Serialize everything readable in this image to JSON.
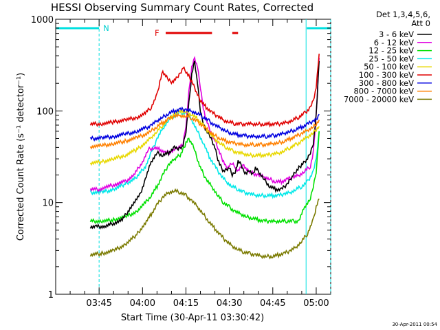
{
  "chart_data": {
    "type": "line",
    "title": "HESSI Observing Summary Count Rates, Corrected",
    "xlabel": "Start Time (30-Apr-11 03:30:42)",
    "ylabel": "Corrected Count Rate (s⁻¹ detector⁻¹)",
    "y_scale": "log",
    "ylim": [
      1,
      1000
    ],
    "xlim_minutes_after_0330": [
      0,
      95
    ],
    "x_ticks": [
      "03:45",
      "04:00",
      "04:15",
      "04:30",
      "04:45",
      "05:00"
    ],
    "x_tick_minutes": [
      15,
      30,
      45,
      60,
      75,
      90
    ],
    "y_ticks": [
      "1",
      "10",
      "100",
      "1000"
    ],
    "legend_header": [
      "Det 1,3,4,5,6,",
      "Att 0"
    ],
    "flag_labels": {
      "night": "N",
      "flare": "F"
    },
    "timestamp": "30-Apr-2011 00:54",
    "night_segments_minutes": [
      [
        0,
        15
      ],
      [
        86.5,
        95
      ]
    ],
    "flare_segments_minutes": [
      [
        38,
        54
      ],
      [
        61,
        63
      ]
    ],
    "series": [
      {
        "name": "3 - 6 keV",
        "color": "#000000",
        "x": [
          12,
          14,
          17,
          20,
          23,
          26,
          29,
          31,
          33,
          35,
          37,
          39,
          41,
          42,
          43,
          44,
          45,
          46,
          47,
          48,
          49,
          50,
          51,
          52,
          53,
          54,
          55,
          56,
          57,
          58,
          59,
          60,
          61,
          62,
          63,
          64,
          65,
          66,
          67,
          68,
          69,
          70,
          72,
          74,
          76,
          78,
          80,
          81,
          82,
          83,
          84,
          85,
          86,
          87,
          88,
          89,
          90,
          91
        ],
        "y": [
          5.5,
          5.5,
          5.5,
          6,
          6.5,
          9,
          12,
          18,
          28,
          35,
          33,
          35,
          40,
          38,
          40,
          42,
          60,
          120,
          250,
          350,
          200,
          100,
          75,
          60,
          55,
          48,
          40,
          30,
          25,
          22,
          23,
          24,
          20,
          22,
          28,
          26,
          22,
          21,
          23,
          20,
          24,
          22,
          18,
          15,
          14,
          14,
          16,
          18,
          20,
          22,
          24,
          26,
          28,
          30,
          35,
          45,
          90,
          350
        ]
      },
      {
        "name": "6 - 12 keV",
        "color": "#e000e0",
        "x": [
          12,
          15,
          18,
          21,
          24,
          27,
          30,
          32,
          34,
          36,
          38,
          40,
          42,
          44,
          45,
          46,
          47,
          48,
          49,
          50,
          51,
          52,
          53,
          54,
          55,
          56,
          57,
          58,
          59,
          60,
          61,
          62,
          63,
          64,
          65,
          66,
          67,
          68,
          70,
          72,
          74,
          76,
          78,
          80,
          82,
          84,
          86,
          88,
          89,
          90,
          91
        ],
        "y": [
          14,
          14,
          15,
          16,
          17,
          20,
          28,
          38,
          40,
          38,
          35,
          36,
          40,
          44,
          70,
          160,
          300,
          380,
          300,
          180,
          110,
          80,
          65,
          55,
          48,
          40,
          33,
          28,
          24,
          25,
          27,
          25,
          22,
          24,
          26,
          23,
          22,
          21,
          20,
          19,
          18,
          17,
          17,
          18,
          19,
          20,
          22,
          25,
          35,
          90,
          380
        ]
      },
      {
        "name": "12 - 25 keV",
        "color": "#00e000",
        "x": [
          12,
          16,
          20,
          24,
          28,
          31,
          33,
          35,
          37,
          39,
          41,
          42,
          43,
          44,
          45,
          46,
          47,
          48,
          49,
          50,
          52,
          54,
          56,
          58,
          60,
          62,
          64,
          66,
          68,
          70,
          72,
          74,
          76,
          78,
          80,
          82,
          84,
          86,
          88,
          89,
          90,
          91
        ],
        "y": [
          6.3,
          6.3,
          6.5,
          7,
          8,
          10,
          12,
          15,
          20,
          26,
          30,
          32,
          33,
          38,
          45,
          50,
          44,
          38,
          30,
          24,
          18,
          15,
          12,
          10,
          9,
          8,
          7.5,
          7,
          6.8,
          6.5,
          6.3,
          6.3,
          6.3,
          6.3,
          6.3,
          6.3,
          6.3,
          9,
          11,
          15,
          22,
          60
        ]
      },
      {
        "name": "25 - 50 keV",
        "color": "#00e8e8",
        "x": [
          12,
          16,
          20,
          24,
          28,
          31,
          33,
          35,
          37,
          39,
          41,
          43,
          45,
          47,
          49,
          51,
          53,
          55,
          57,
          59,
          61,
          63,
          65,
          67,
          69,
          71,
          73,
          75,
          77,
          79,
          81,
          83,
          85,
          87,
          89,
          90,
          91
        ],
        "y": [
          13,
          13,
          14,
          16,
          19,
          25,
          35,
          50,
          65,
          80,
          90,
          95,
          95,
          80,
          60,
          45,
          32,
          25,
          20,
          17,
          15,
          14,
          13,
          12.5,
          12,
          12,
          12,
          12,
          12,
          12.5,
          13,
          14,
          15,
          17,
          22,
          30,
          60
        ]
      },
      {
        "name": "50 - 100 keV",
        "color": "#e8d800",
        "x": [
          12,
          16,
          20,
          24,
          28,
          31,
          33,
          35,
          37,
          39,
          41,
          43,
          45,
          47,
          49,
          51,
          53,
          55,
          57,
          59,
          61,
          63,
          65,
          67,
          69,
          71,
          73,
          75,
          77,
          79,
          81,
          83,
          85,
          87,
          89,
          90,
          91
        ],
        "y": [
          27,
          28,
          30,
          33,
          38,
          45,
          52,
          60,
          70,
          82,
          92,
          100,
          98,
          92,
          82,
          70,
          58,
          50,
          44,
          40,
          37,
          35,
          34,
          33,
          33,
          33,
          33,
          34,
          35,
          37,
          40,
          43,
          47,
          52,
          58,
          62,
          68
        ]
      },
      {
        "name": "100 - 300 keV",
        "color": "#e00000",
        "x": [
          12,
          16,
          20,
          24,
          28,
          31,
          33,
          35,
          36,
          37,
          38,
          39,
          40,
          41,
          42,
          43,
          44,
          45,
          46,
          47,
          48,
          49,
          50,
          52,
          54,
          56,
          58,
          60,
          62,
          64,
          66,
          68,
          70,
          72,
          74,
          76,
          78,
          80,
          82,
          84,
          86,
          88,
          89,
          90,
          91
        ],
        "y": [
          72,
          73,
          76,
          80,
          85,
          95,
          110,
          150,
          210,
          270,
          240,
          220,
          210,
          215,
          230,
          260,
          300,
          270,
          240,
          210,
          180,
          150,
          130,
          110,
          96,
          88,
          80,
          76,
          73,
          72,
          72,
          72,
          72,
          72,
          72,
          72,
          73,
          76,
          80,
          86,
          95,
          110,
          130,
          180,
          420
        ]
      },
      {
        "name": "300 - 800 keV",
        "color": "#0000e0",
        "x": [
          12,
          16,
          20,
          24,
          28,
          31,
          33,
          35,
          37,
          39,
          41,
          43,
          45,
          47,
          49,
          51,
          53,
          55,
          57,
          59,
          61,
          63,
          65,
          67,
          69,
          71,
          73,
          75,
          77,
          79,
          81,
          83,
          85,
          87,
          89,
          90,
          91
        ],
        "y": [
          50,
          51,
          53,
          56,
          60,
          65,
          70,
          78,
          86,
          94,
          100,
          104,
          104,
          100,
          94,
          86,
          78,
          70,
          65,
          60,
          57,
          55,
          54,
          53,
          53,
          53,
          53,
          54,
          55,
          57,
          60,
          63,
          67,
          72,
          78,
          82,
          92
        ]
      },
      {
        "name": "800 - 7000 keV",
        "color": "#ff8000",
        "x": [
          12,
          16,
          20,
          24,
          28,
          31,
          33,
          35,
          37,
          39,
          41,
          43,
          45,
          47,
          49,
          51,
          53,
          55,
          57,
          59,
          61,
          63,
          65,
          67,
          69,
          71,
          73,
          75,
          77,
          79,
          81,
          83,
          85,
          87,
          89,
          90,
          91
        ],
        "y": [
          41,
          42,
          44,
          47,
          51,
          56,
          61,
          68,
          75,
          82,
          88,
          90,
          88,
          84,
          77,
          68,
          60,
          54,
          50,
          47,
          45,
          44,
          43,
          43,
          43,
          43,
          43,
          44,
          45,
          47,
          50,
          53,
          57,
          62,
          68,
          72,
          80
        ]
      },
      {
        "name": "7000 - 20000 keV",
        "color": "#7a7a00",
        "x": [
          12,
          16,
          20,
          24,
          28,
          31,
          33,
          35,
          37,
          39,
          41,
          43,
          45,
          47,
          49,
          51,
          53,
          55,
          57,
          59,
          61,
          63,
          65,
          67,
          69,
          71,
          73,
          75,
          77,
          79,
          81,
          83,
          85,
          87,
          89,
          90,
          91
        ],
        "y": [
          2.7,
          2.8,
          3,
          3.5,
          4.5,
          6,
          7.5,
          9.5,
          11.5,
          13,
          13.5,
          13,
          12,
          10.5,
          9,
          7.5,
          6.2,
          5.2,
          4.4,
          3.8,
          3.4,
          3.1,
          2.9,
          2.8,
          2.7,
          2.6,
          2.6,
          2.6,
          2.7,
          2.8,
          3,
          3.3,
          3.8,
          4.6,
          6.5,
          9,
          11
        ]
      }
    ]
  }
}
